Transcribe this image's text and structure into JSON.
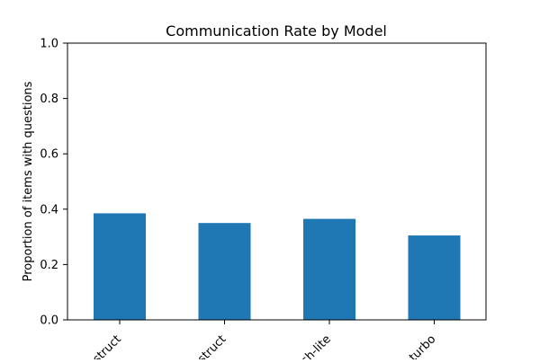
{
  "chart_data": {
    "type": "bar",
    "title": "Communication Rate by Model",
    "xlabel": "",
    "ylabel": "Proportion of items with questions",
    "categories": [
      "struct",
      "struct",
      "sh-lite",
      "-turbo"
    ],
    "values": [
      0.385,
      0.35,
      0.365,
      0.305
    ],
    "ylim": [
      0,
      1
    ],
    "yticks": [
      "0.0",
      "0.2",
      "0.4",
      "0.6",
      "0.8",
      "1.0"
    ],
    "bar_color": "#1f77b4",
    "grid": false,
    "legend": "none"
  }
}
